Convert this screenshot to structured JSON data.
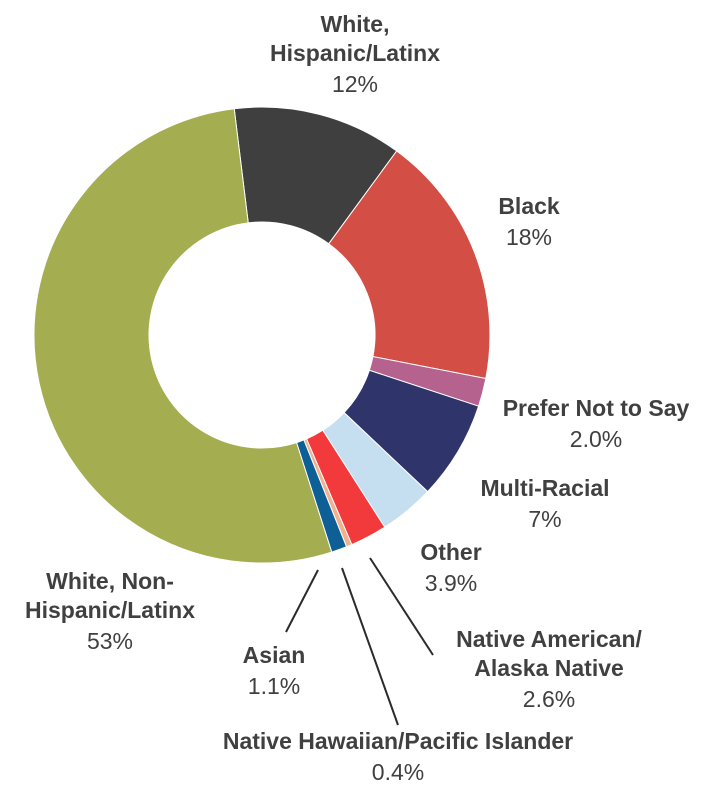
{
  "chart_data": {
    "type": "pie",
    "donut": true,
    "title": "",
    "slices": [
      {
        "label": "White, Hispanic/Latinx",
        "label_lines": [
          "White,",
          "Hispanic/Latinx"
        ],
        "value": 12,
        "display": "12%",
        "color": "#3f3f3f"
      },
      {
        "label": "Black",
        "label_lines": [
          "Black"
        ],
        "value": 18,
        "display": "18%",
        "color": "#d34e44"
      },
      {
        "label": "Prefer Not to Say",
        "label_lines": [
          "Prefer Not to Say"
        ],
        "value": 2.0,
        "display": "2.0%",
        "color": "#b5628f"
      },
      {
        "label": "Multi-Racial",
        "label_lines": [
          "Multi-Racial"
        ],
        "value": 7,
        "display": "7%",
        "color": "#2f346b"
      },
      {
        "label": "Other",
        "label_lines": [
          "Other"
        ],
        "value": 3.9,
        "display": "3.9%",
        "color": "#c6dff0"
      },
      {
        "label": "Native American/ Alaska Native",
        "label_lines": [
          "Native American/",
          "Alaska Native"
        ],
        "value": 2.6,
        "display": "2.6%",
        "color": "#f23a3c"
      },
      {
        "label": "Native Hawaiian/Pacific Islander",
        "label_lines": [
          "Native Hawaiian/Pacific Islander"
        ],
        "value": 0.4,
        "display": "0.4%",
        "color": "#f2b08f"
      },
      {
        "label": "Asian",
        "label_lines": [
          "Asian"
        ],
        "value": 1.1,
        "display": "1.1%",
        "color": "#0f5f97"
      },
      {
        "label": "White, Non-Hispanic/Latinx",
        "label_lines": [
          "White, Non-",
          "Hispanic/Latinx"
        ],
        "value": 53,
        "display": "53%",
        "color": "#a4ad50"
      }
    ]
  }
}
